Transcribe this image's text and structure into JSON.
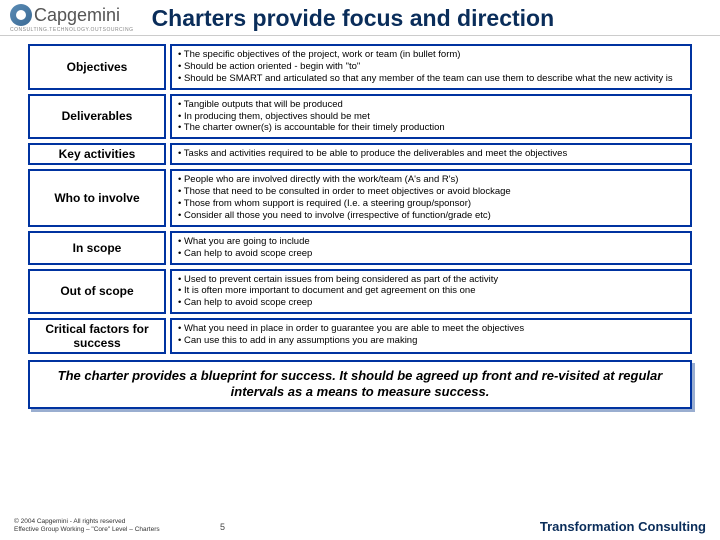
{
  "logo": {
    "name": "Capgemini",
    "tagline": "CONSULTING.TECHNOLOGY.OUTSOURCING"
  },
  "title": "Charters provide focus and direction",
  "rows": [
    {
      "label": "Objectives",
      "bullets": [
        "The specific objectives of the project, work or team (in bullet form)",
        "Should be action oriented - begin with \"to\"",
        "Should be SMART and articulated so that any member of the team can use them to describe what the new activity is"
      ]
    },
    {
      "label": "Deliverables",
      "bullets": [
        "Tangible outputs that will be produced",
        "In producing them, objectives should be met",
        "The charter owner(s) is accountable for their timely production"
      ]
    },
    {
      "label": "Key activities",
      "bullets": [
        "Tasks and activities required to be able to produce the deliverables and meet the objectives"
      ]
    },
    {
      "label": "Who to involve",
      "bullets": [
        "People who are involved directly with the work/team (A's and R's)",
        "Those that need to be consulted in order to meet objectives or avoid blockage",
        "Those from whom support is required (I.e. a steering group/sponsor)",
        "Consider all those you need to involve (irrespective of function/grade etc)"
      ]
    },
    {
      "label": "In scope",
      "bullets": [
        "What you are going to include",
        "Can help to avoid scope creep"
      ]
    },
    {
      "label": "Out of scope",
      "bullets": [
        "Used to prevent certain issues from being considered as part of the activity",
        "It is often more important to document and get agreement on this one",
        "Can help to avoid scope creep"
      ]
    },
    {
      "label": "Critical factors for success",
      "bullets": [
        "What you need in place in order to guarantee you are able to meet the objectives",
        "Can use this to add in any assumptions you are making"
      ]
    }
  ],
  "summary": "The charter provides a blueprint for success.  It should be agreed up front and re-visited at regular intervals as a means to measure success.",
  "footer": {
    "copyright_l1": "© 2004 Capgemini - All rights reserved",
    "copyright_l2": "Effective Group Working – \"Core\" Level – Charters",
    "page": "5",
    "brand": "Transformation Consulting"
  },
  "colors": {
    "border": "#0033a0",
    "title": "#0a2d5a",
    "shadow": "#9aaed0"
  }
}
